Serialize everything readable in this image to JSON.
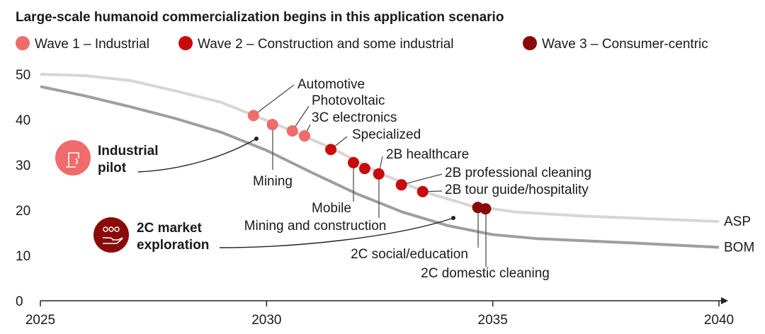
{
  "chart_data": {
    "type": "line",
    "title": "Large-scale humanoid commercialization begins in this application scenario",
    "legend": [
      {
        "name": "Wave 1 – Industrial",
        "color": "#f06b6b"
      },
      {
        "name": "Wave 2 – Construction and some industrial",
        "color": "#c80a0a"
      },
      {
        "name": "Wave 3 – Consumer-centric",
        "color": "#8a0a0a"
      }
    ],
    "legend_placement": "top-left",
    "xlim": [
      2025,
      2040
    ],
    "ylim": [
      0,
      50
    ],
    "x_ticks": [
      "2025",
      "2030",
      "2035",
      "2040"
    ],
    "y_ticks": [
      "0",
      "10",
      "20",
      "30",
      "40",
      "50"
    ],
    "grid": false,
    "series": [
      {
        "name": "ASP",
        "color": "#d6d6d6",
        "x": [
          2025,
          2026,
          2027,
          2028,
          2029,
          2029.7,
          2030.5,
          2031.5,
          2032.5,
          2033.5,
          2034.5,
          2035.5,
          2037,
          2040
        ],
        "y": [
          50,
          49.7,
          48.6,
          46.3,
          43.8,
          41,
          37.8,
          33.4,
          28.2,
          24,
          21,
          19.6,
          18.7,
          17.5
        ]
      },
      {
        "name": "BOM",
        "color": "#9e9e9e",
        "x": [
          2025,
          2026,
          2027,
          2028,
          2029,
          2030,
          2031,
          2032,
          2033,
          2034,
          2035,
          2036,
          2038,
          2040
        ],
        "y": [
          47.3,
          45.2,
          42.8,
          40.2,
          37.2,
          33.2,
          28.3,
          23.6,
          19.6,
          16.6,
          14.6,
          13.7,
          12.8,
          11.8
        ]
      }
    ],
    "points": [
      {
        "label": "Automotive",
        "wave": 1,
        "x": 29.71,
        "y": 40.9
      },
      {
        "label": "Mining",
        "wave": 1,
        "x": 30.13,
        "y": 38.9
      },
      {
        "label": "Photovoltaic",
        "wave": 1,
        "x": 30.57,
        "y": 37.5
      },
      {
        "label": "3C electronics",
        "wave": 1,
        "x": 30.84,
        "y": 36.4
      },
      {
        "label": "Specialized",
        "wave": 2,
        "x": 31.42,
        "y": 33.4
      },
      {
        "label": "Mobile",
        "wave": 2,
        "x": 31.92,
        "y": 30.5
      },
      {
        "label": "Mining and construction",
        "wave": 2,
        "x": 32.17,
        "y": 29.2
      },
      {
        "label": "2B healthcare",
        "wave": 2,
        "x": 32.48,
        "y": 28.0
      },
      {
        "label": "2B professional cleaning",
        "wave": 2,
        "x": 32.98,
        "y": 25.6
      },
      {
        "label": "2B tour guide/hospitality",
        "wave": 2,
        "x": 33.45,
        "y": 24.1
      },
      {
        "label": "2C social/education",
        "wave": 3,
        "x": 34.67,
        "y": 20.6
      },
      {
        "label": "2C domestic cleaning",
        "wave": 3,
        "x": 34.84,
        "y": 20.3
      }
    ],
    "annotations": [
      {
        "line1": "Industrial",
        "line2": "pilot",
        "color": "#f06b6b",
        "icon": "robot-arm-icon"
      },
      {
        "line1": "2C market",
        "line2": "exploration",
        "color": "#8a0a0a",
        "icon": "people-hand-icon"
      }
    ]
  }
}
